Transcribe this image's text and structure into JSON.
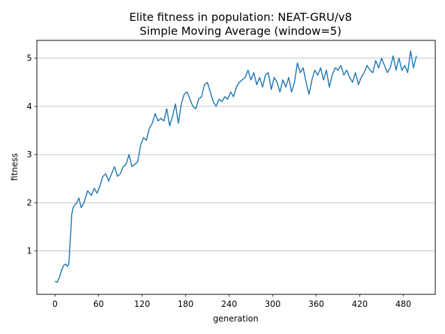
{
  "chart_data": {
    "type": "line",
    "title_line1": "Elite fitness in population: NEAT-GRU/v8",
    "title_line2": "Simple Moving Average (window=5)",
    "xlabel": "generation",
    "ylabel": "fitness",
    "xlim": [
      -25,
      524
    ],
    "ylim": [
      0.1,
      5.37
    ],
    "xticks": [
      0,
      60,
      120,
      180,
      240,
      300,
      360,
      420,
      480
    ],
    "yticks": [
      1,
      2,
      3,
      4,
      5
    ],
    "grid": "y-major",
    "line_color": "#1f77b4",
    "series": [
      {
        "x": [
          0,
          3,
          6,
          9,
          12,
          15,
          17,
          19,
          21,
          23,
          25,
          27,
          30,
          33,
          36,
          40,
          45,
          50,
          54,
          58,
          62,
          66,
          70,
          74,
          78,
          82,
          86,
          90,
          94,
          98,
          102,
          106,
          110,
          114,
          118,
          122,
          126,
          130,
          134,
          138,
          142,
          146,
          150,
          154,
          158,
          162,
          166,
          170,
          174,
          178,
          182,
          186,
          190,
          194,
          198,
          202,
          206,
          210,
          214,
          218,
          222,
          226,
          230,
          234,
          238,
          242,
          246,
          250,
          254,
          258,
          262,
          266,
          270,
          274,
          278,
          282,
          286,
          290,
          294,
          298,
          302,
          306,
          310,
          314,
          318,
          322,
          326,
          330,
          334,
          338,
          342,
          346,
          350,
          354,
          358,
          362,
          366,
          370,
          374,
          378,
          382,
          386,
          390,
          394,
          398,
          402,
          406,
          410,
          414,
          418,
          422,
          426,
          430,
          434,
          438,
          442,
          446,
          450,
          454,
          458,
          462,
          466,
          470,
          474,
          478,
          482,
          486,
          490,
          494,
          498
        ],
        "y": [
          0.37,
          0.35,
          0.45,
          0.6,
          0.7,
          0.73,
          0.68,
          0.72,
          1.2,
          1.75,
          1.9,
          1.95,
          2.0,
          2.1,
          1.9,
          2.0,
          2.25,
          2.15,
          2.3,
          2.2,
          2.35,
          2.55,
          2.6,
          2.45,
          2.6,
          2.75,
          2.55,
          2.6,
          2.75,
          2.8,
          3.0,
          2.75,
          2.8,
          2.85,
          3.2,
          3.35,
          3.3,
          3.55,
          3.65,
          3.85,
          3.7,
          3.75,
          3.7,
          3.95,
          3.6,
          3.8,
          4.05,
          3.65,
          4.05,
          4.25,
          4.3,
          4.15,
          4.0,
          3.95,
          4.15,
          4.2,
          4.45,
          4.5,
          4.3,
          4.1,
          4.0,
          4.15,
          4.1,
          4.2,
          4.15,
          4.3,
          4.2,
          4.4,
          4.5,
          4.55,
          4.6,
          4.75,
          4.55,
          4.7,
          4.45,
          4.6,
          4.4,
          4.65,
          4.7,
          4.35,
          4.6,
          4.5,
          4.3,
          4.55,
          4.4,
          4.6,
          4.3,
          4.5,
          4.9,
          4.7,
          4.8,
          4.5,
          4.25,
          4.55,
          4.75,
          4.65,
          4.8,
          4.55,
          4.75,
          4.4,
          4.65,
          4.8,
          4.75,
          4.85,
          4.65,
          4.75,
          4.6,
          4.5,
          4.7,
          4.45,
          4.6,
          4.7,
          4.85,
          4.75,
          4.7,
          4.95,
          4.8,
          5.0,
          4.85,
          4.7,
          4.8,
          5.05,
          4.75,
          5.0,
          4.75,
          4.85,
          4.7,
          5.15,
          4.8,
          5.05
        ]
      }
    ]
  }
}
